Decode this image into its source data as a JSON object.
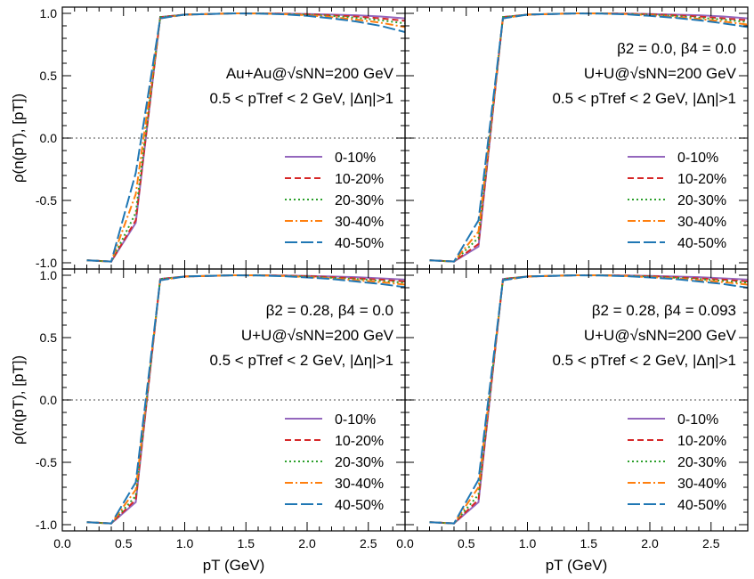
{
  "chart_data": {
    "type": "line",
    "y_axis_label": "ρ(n(pT), [pT])",
    "x_axis_label": "pT (GeV)",
    "xlim": [
      0.0,
      2.8
    ],
    "ylim": [
      -1.05,
      1.05
    ],
    "x_ticks": [
      "0.0",
      "0.5",
      "1.0",
      "1.5",
      "2.0",
      "2.5"
    ],
    "y_ticks": [
      "-1.0",
      "-0.5",
      "0.0",
      "0.5",
      "1.0"
    ],
    "panels": [
      {
        "annotations": [
          "Au+Au@√sNN=200 GeV",
          "0.5 < pTref < 2 GeV, |Δη|>1"
        ],
        "series": [
          {
            "name": "0-10%",
            "color": "#9467bd",
            "dash": "",
            "x": [
              0.2,
              0.4,
              0.6,
              0.8,
              1.0,
              1.2,
              1.4,
              1.6,
              1.8,
              2.0,
              2.2,
              2.4,
              2.6,
              2.8
            ],
            "values": [
              -0.98,
              -0.99,
              -0.68,
              0.97,
              0.99,
              0.995,
              1.0,
              1.0,
              0.998,
              0.995,
              0.99,
              0.985,
              0.975,
              0.96
            ]
          },
          {
            "name": "10-20%",
            "color": "#d62728",
            "dash": "7,4",
            "x": [
              0.2,
              0.4,
              0.6,
              0.8,
              1.0,
              1.2,
              1.4,
              1.6,
              1.8,
              2.0,
              2.2,
              2.4,
              2.6,
              2.8
            ],
            "values": [
              -0.98,
              -0.99,
              -0.66,
              0.97,
              0.99,
              0.995,
              1.0,
              1.0,
              0.997,
              0.993,
              0.985,
              0.975,
              0.96,
              0.94
            ]
          },
          {
            "name": "20-30%",
            "color": "#2ca02c",
            "dash": "2,3",
            "x": [
              0.2,
              0.4,
              0.6,
              0.8,
              1.0,
              1.2,
              1.4,
              1.6,
              1.8,
              2.0,
              2.2,
              2.4,
              2.6,
              2.8
            ],
            "values": [
              -0.98,
              -0.99,
              -0.6,
              0.97,
              0.99,
              0.995,
              1.0,
              1.0,
              0.996,
              0.99,
              0.98,
              0.965,
              0.945,
              0.92
            ]
          },
          {
            "name": "30-40%",
            "color": "#ff7f0e",
            "dash": "9,3,2,3",
            "x": [
              0.2,
              0.4,
              0.6,
              0.8,
              1.0,
              1.2,
              1.4,
              1.6,
              1.8,
              2.0,
              2.2,
              2.4,
              2.6,
              2.8
            ],
            "values": [
              -0.98,
              -0.99,
              -0.45,
              0.96,
              0.99,
              0.995,
              1.0,
              0.999,
              0.995,
              0.985,
              0.97,
              0.95,
              0.925,
              0.89
            ]
          },
          {
            "name": "40-50%",
            "color": "#1f77b4",
            "dash": "14,4",
            "x": [
              0.2,
              0.4,
              0.6,
              0.8,
              1.0,
              1.2,
              1.4,
              1.6,
              1.8,
              2.0,
              2.2,
              2.4,
              2.6,
              2.8
            ],
            "values": [
              -0.98,
              -0.99,
              -0.28,
              0.96,
              0.99,
              0.995,
              0.999,
              0.998,
              0.993,
              0.98,
              0.96,
              0.935,
              0.9,
              0.85
            ]
          }
        ]
      },
      {
        "annotations": [
          "β2 = 0.0, β4 = 0.0",
          "U+U@√sNN=200 GeV",
          "0.5 < pTref < 2 GeV, |Δη|>1"
        ],
        "series": [
          {
            "name": "0-10%",
            "color": "#9467bd",
            "dash": "",
            "x": [
              0.2,
              0.4,
              0.6,
              0.8,
              1.0,
              1.2,
              1.4,
              1.6,
              1.8,
              2.0,
              2.2,
              2.4,
              2.6,
              2.8
            ],
            "values": [
              -0.98,
              -0.99,
              -0.87,
              0.97,
              0.99,
              0.995,
              1.0,
              1.0,
              0.998,
              0.995,
              0.99,
              0.985,
              0.975,
              0.96
            ]
          },
          {
            "name": "10-20%",
            "color": "#d62728",
            "dash": "7,4",
            "x": [
              0.2,
              0.4,
              0.6,
              0.8,
              1.0,
              1.2,
              1.4,
              1.6,
              1.8,
              2.0,
              2.2,
              2.4,
              2.6,
              2.8
            ],
            "values": [
              -0.98,
              -0.99,
              -0.85,
              0.97,
              0.99,
              0.995,
              1.0,
              1.0,
              0.997,
              0.993,
              0.985,
              0.975,
              0.96,
              0.945
            ]
          },
          {
            "name": "20-30%",
            "color": "#2ca02c",
            "dash": "2,3",
            "x": [
              0.2,
              0.4,
              0.6,
              0.8,
              1.0,
              1.2,
              1.4,
              1.6,
              1.8,
              2.0,
              2.2,
              2.4,
              2.6,
              2.8
            ],
            "values": [
              -0.98,
              -0.99,
              -0.8,
              0.97,
              0.99,
              0.995,
              1.0,
              1.0,
              0.996,
              0.99,
              0.98,
              0.965,
              0.95,
              0.93
            ]
          },
          {
            "name": "30-40%",
            "color": "#ff7f0e",
            "dash": "9,3,2,3",
            "x": [
              0.2,
              0.4,
              0.6,
              0.8,
              1.0,
              1.2,
              1.4,
              1.6,
              1.8,
              2.0,
              2.2,
              2.4,
              2.6,
              2.8
            ],
            "values": [
              -0.98,
              -0.99,
              -0.75,
              0.96,
              0.99,
              0.995,
              1.0,
              0.999,
              0.995,
              0.985,
              0.97,
              0.955,
              0.935,
              0.91
            ]
          },
          {
            "name": "40-50%",
            "color": "#1f77b4",
            "dash": "14,4",
            "x": [
              0.2,
              0.4,
              0.6,
              0.8,
              1.0,
              1.2,
              1.4,
              1.6,
              1.8,
              2.0,
              2.2,
              2.4,
              2.6,
              2.8
            ],
            "values": [
              -0.98,
              -0.99,
              -0.66,
              0.96,
              0.99,
              0.995,
              0.999,
              0.998,
              0.993,
              0.98,
              0.965,
              0.945,
              0.92,
              0.89
            ]
          }
        ]
      },
      {
        "annotations": [
          "β2 = 0.28, β4 = 0.0",
          "U+U@√sNN=200 GeV",
          "0.5 < pTref < 2 GeV, |Δη|>1"
        ],
        "series": [
          {
            "name": "0-10%",
            "color": "#9467bd",
            "dash": "",
            "x": [
              0.2,
              0.4,
              0.6,
              0.8,
              1.0,
              1.2,
              1.4,
              1.6,
              1.8,
              2.0,
              2.2,
              2.4,
              2.6,
              2.8
            ],
            "values": [
              -0.98,
              -0.99,
              -0.82,
              0.97,
              0.99,
              0.995,
              1.0,
              1.0,
              0.998,
              0.995,
              0.99,
              0.985,
              0.975,
              0.965
            ]
          },
          {
            "name": "10-20%",
            "color": "#d62728",
            "dash": "7,4",
            "x": [
              0.2,
              0.4,
              0.6,
              0.8,
              1.0,
              1.2,
              1.4,
              1.6,
              1.8,
              2.0,
              2.2,
              2.4,
              2.6,
              2.8
            ],
            "values": [
              -0.98,
              -0.99,
              -0.8,
              0.97,
              0.99,
              0.995,
              1.0,
              1.0,
              0.997,
              0.993,
              0.985,
              0.975,
              0.965,
              0.95
            ]
          },
          {
            "name": "20-30%",
            "color": "#2ca02c",
            "dash": "2,3",
            "x": [
              0.2,
              0.4,
              0.6,
              0.8,
              1.0,
              1.2,
              1.4,
              1.6,
              1.8,
              2.0,
              2.2,
              2.4,
              2.6,
              2.8
            ],
            "values": [
              -0.98,
              -0.99,
              -0.77,
              0.97,
              0.99,
              0.995,
              1.0,
              1.0,
              0.996,
              0.99,
              0.98,
              0.97,
              0.955,
              0.94
            ]
          },
          {
            "name": "30-40%",
            "color": "#ff7f0e",
            "dash": "9,3,2,3",
            "x": [
              0.2,
              0.4,
              0.6,
              0.8,
              1.0,
              1.2,
              1.4,
              1.6,
              1.8,
              2.0,
              2.2,
              2.4,
              2.6,
              2.8
            ],
            "values": [
              -0.98,
              -0.99,
              -0.72,
              0.96,
              0.99,
              0.995,
              1.0,
              0.999,
              0.995,
              0.985,
              0.975,
              0.96,
              0.945,
              0.925
            ]
          },
          {
            "name": "40-50%",
            "color": "#1f77b4",
            "dash": "14,4",
            "x": [
              0.2,
              0.4,
              0.6,
              0.8,
              1.0,
              1.2,
              1.4,
              1.6,
              1.8,
              2.0,
              2.2,
              2.4,
              2.6,
              2.8
            ],
            "values": [
              -0.98,
              -0.99,
              -0.66,
              0.96,
              0.99,
              0.995,
              0.999,
              0.998,
              0.993,
              0.982,
              0.97,
              0.95,
              0.93,
              0.905
            ]
          }
        ]
      },
      {
        "annotations": [
          "β2 = 0.28, β4 = 0.093",
          "U+U@√sNN=200 GeV",
          "0.5 < pTref < 2 GeV, |Δη|>1"
        ],
        "series": [
          {
            "name": "0-10%",
            "color": "#9467bd",
            "dash": "",
            "x": [
              0.2,
              0.4,
              0.6,
              0.8,
              1.0,
              1.2,
              1.4,
              1.6,
              1.8,
              2.0,
              2.2,
              2.4,
              2.6,
              2.8
            ],
            "values": [
              -0.98,
              -0.99,
              -0.82,
              0.97,
              0.99,
              0.995,
              1.0,
              1.0,
              0.998,
              0.995,
              0.99,
              0.985,
              0.975,
              0.965
            ]
          },
          {
            "name": "10-20%",
            "color": "#d62728",
            "dash": "7,4",
            "x": [
              0.2,
              0.4,
              0.6,
              0.8,
              1.0,
              1.2,
              1.4,
              1.6,
              1.8,
              2.0,
              2.2,
              2.4,
              2.6,
              2.8
            ],
            "values": [
              -0.98,
              -0.99,
              -0.8,
              0.97,
              0.99,
              0.995,
              1.0,
              1.0,
              0.997,
              0.993,
              0.985,
              0.975,
              0.965,
              0.95
            ]
          },
          {
            "name": "20-30%",
            "color": "#2ca02c",
            "dash": "2,3",
            "x": [
              0.2,
              0.4,
              0.6,
              0.8,
              1.0,
              1.2,
              1.4,
              1.6,
              1.8,
              2.0,
              2.2,
              2.4,
              2.6,
              2.8
            ],
            "values": [
              -0.98,
              -0.99,
              -0.76,
              0.97,
              0.99,
              0.995,
              1.0,
              1.0,
              0.996,
              0.99,
              0.98,
              0.97,
              0.955,
              0.94
            ]
          },
          {
            "name": "30-40%",
            "color": "#ff7f0e",
            "dash": "9,3,2,3",
            "x": [
              0.2,
              0.4,
              0.6,
              0.8,
              1.0,
              1.2,
              1.4,
              1.6,
              1.8,
              2.0,
              2.2,
              2.4,
              2.6,
              2.8
            ],
            "values": [
              -0.98,
              -0.99,
              -0.7,
              0.96,
              0.99,
              0.995,
              1.0,
              0.999,
              0.995,
              0.985,
              0.975,
              0.96,
              0.945,
              0.925
            ]
          },
          {
            "name": "40-50%",
            "color": "#1f77b4",
            "dash": "14,4",
            "x": [
              0.2,
              0.4,
              0.6,
              0.8,
              1.0,
              1.2,
              1.4,
              1.6,
              1.8,
              2.0,
              2.2,
              2.4,
              2.6,
              2.8
            ],
            "values": [
              -0.98,
              -0.99,
              -0.64,
              0.96,
              0.99,
              0.995,
              0.999,
              0.998,
              0.993,
              0.982,
              0.97,
              0.95,
              0.93,
              0.9
            ]
          }
        ]
      }
    ]
  }
}
